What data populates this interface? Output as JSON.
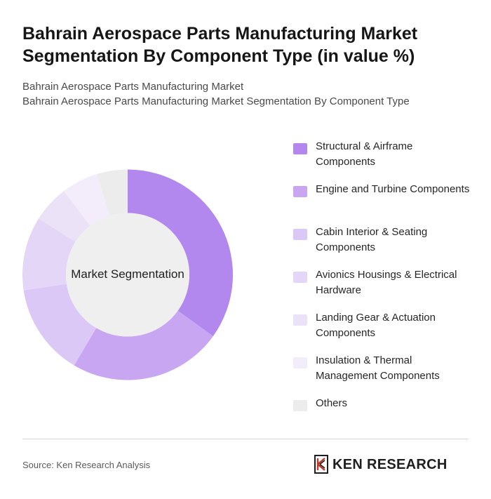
{
  "header": {
    "title": "Bahrain Aerospace Parts Manufacturing Market Segmentation By Component Type (in value %)",
    "subtitle_line1": "Bahrain Aerospace Parts Manufacturing Market",
    "subtitle_line2": "Bahrain Aerospace Parts Manufacturing Market Segmentation By Component Type"
  },
  "chart_data": {
    "type": "pie",
    "style": "donut",
    "center_label": "Market Segmentation",
    "categories": [
      "Structural & Airframe Components",
      "Engine and Turbine Components",
      "Cabin Interior & Seating Components",
      "Avionics Housings & Electrical Hardware",
      "Landing Gear & Actuation Components",
      "Insulation & Thermal Management Components",
      "Others"
    ],
    "values": [
      37,
      25,
      15,
      12,
      6,
      6,
      5
    ],
    "colors": [
      "#b388ee",
      "#c8a6f2",
      "#dcc8f6",
      "#e4d6f7",
      "#ebe2f8",
      "#f2ecfb",
      "#ececec"
    ],
    "legend_position": "right"
  },
  "footer": {
    "source": "Source: Ken Research Analysis",
    "logo_text": "KEN RESEARCH"
  }
}
